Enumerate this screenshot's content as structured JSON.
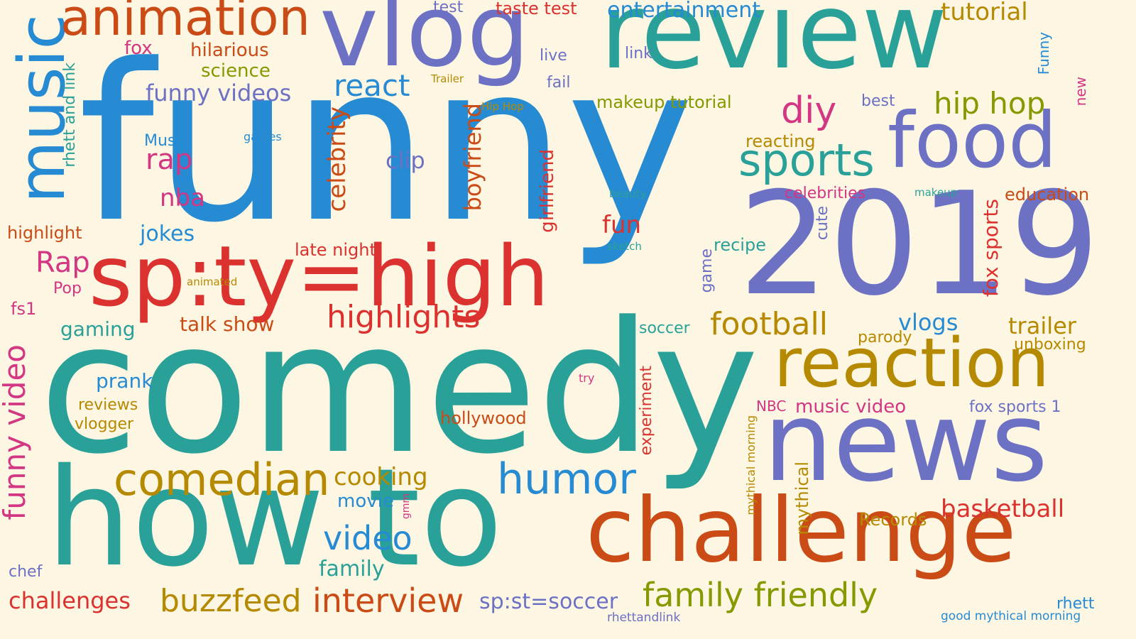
{
  "background": "#fdf6e3",
  "palette": {
    "blue": "#268bd2",
    "teal": "#2aa198",
    "violet": "#6c71c4",
    "red": "#dc322f",
    "orange": "#cb4b16",
    "gold": "#b58900",
    "olive": "#859900",
    "magenta": "#d33682"
  },
  "words": [
    {
      "text": "funny",
      "color": "#268bd2"
    },
    {
      "text": "comedy",
      "color": "#2aa198"
    },
    {
      "text": "review",
      "color": "#2aa198"
    },
    {
      "text": "vlog",
      "color": "#6c71c4"
    },
    {
      "text": "2019",
      "color": "#6c71c4"
    },
    {
      "text": "news",
      "color": "#6c71c4"
    },
    {
      "text": "how to",
      "color": "#2aa198"
    },
    {
      "text": "challenge",
      "color": "#cb4b16"
    },
    {
      "text": "reaction",
      "color": "#b58900"
    },
    {
      "text": "sp:ty=high",
      "color": "#dc322f"
    },
    {
      "text": "food",
      "color": "#6c71c4"
    },
    {
      "text": "music",
      "color": "#268bd2"
    },
    {
      "text": "animation",
      "color": "#cb4b16"
    },
    {
      "text": "comedian",
      "color": "#b58900"
    },
    {
      "text": "sports",
      "color": "#2aa198"
    },
    {
      "text": "humor",
      "color": "#268bd2"
    },
    {
      "text": "football",
      "color": "#b58900"
    },
    {
      "text": "family friendly",
      "color": "#859900"
    },
    {
      "text": "interview",
      "color": "#cb4b16"
    },
    {
      "text": "highlights",
      "color": "#dc322f"
    },
    {
      "text": "diy",
      "color": "#d33682"
    },
    {
      "text": "hip hop",
      "color": "#859900"
    },
    {
      "text": "buzzfeed",
      "color": "#b58900"
    },
    {
      "text": "funny video",
      "color": "#d33682"
    },
    {
      "text": "basketball",
      "color": "#dc322f"
    },
    {
      "text": "video",
      "color": "#268bd2"
    },
    {
      "text": "react",
      "color": "#268bd2"
    },
    {
      "text": "funny videos",
      "color": "#6c71c4"
    },
    {
      "text": "entertainment",
      "color": "#268bd2"
    },
    {
      "text": "tutorial",
      "color": "#b58900"
    },
    {
      "text": "challenges",
      "color": "#dc322f"
    },
    {
      "text": "sp:st=soccer",
      "color": "#6c71c4"
    },
    {
      "text": "cooking",
      "color": "#b58900"
    },
    {
      "text": "rap",
      "color": "#d33682"
    },
    {
      "text": "Rap",
      "color": "#d33682"
    },
    {
      "text": "trailer",
      "color": "#b58900"
    },
    {
      "text": "vlogs",
      "color": "#268bd2"
    },
    {
      "text": "nba",
      "color": "#d33682"
    },
    {
      "text": "jokes",
      "color": "#268bd2"
    },
    {
      "text": "clip",
      "color": "#6c71c4"
    },
    {
      "text": "fun",
      "color": "#dc322f"
    },
    {
      "text": "talk show",
      "color": "#cb4b16"
    },
    {
      "text": "gaming",
      "color": "#2aa198"
    },
    {
      "text": "prank",
      "color": "#268bd2"
    },
    {
      "text": "movie",
      "color": "#268bd2"
    },
    {
      "text": "family",
      "color": "#2aa198"
    },
    {
      "text": "music video",
      "color": "#d33682"
    },
    {
      "text": "celebrity",
      "color": "#cb4b16"
    },
    {
      "text": "boyfriend",
      "color": "#cb4b16"
    },
    {
      "text": "girlfriend",
      "color": "#dc322f"
    },
    {
      "text": "hilarious",
      "color": "#cb4b16"
    },
    {
      "text": "science",
      "color": "#859900"
    },
    {
      "text": "makeup tutorial",
      "color": "#859900"
    },
    {
      "text": "reacting",
      "color": "#b58900"
    },
    {
      "text": "celebrities",
      "color": "#d33682"
    },
    {
      "text": "education",
      "color": "#cb4b16"
    },
    {
      "text": "fox sports",
      "color": "#dc322f"
    },
    {
      "text": "recipe",
      "color": "#2aa198"
    },
    {
      "text": "highlight",
      "color": "#cb4b16"
    },
    {
      "text": "late night",
      "color": "#dc322f"
    },
    {
      "text": "soccer",
      "color": "#2aa198"
    },
    {
      "text": "parody",
      "color": "#b58900"
    },
    {
      "text": "unboxing",
      "color": "#b58900"
    },
    {
      "text": "fox sports 1",
      "color": "#6c71c4"
    },
    {
      "text": "reviews",
      "color": "#b58900"
    },
    {
      "text": "vlogger",
      "color": "#b58900"
    },
    {
      "text": "hollywood",
      "color": "#cb4b16"
    },
    {
      "text": "Records",
      "color": "#b58900"
    },
    {
      "text": "mythical",
      "color": "#b58900"
    },
    {
      "text": "experiment",
      "color": "#dc322f"
    },
    {
      "text": "rhett and link",
      "color": "#2aa198"
    },
    {
      "text": "fox",
      "color": "#d33682"
    },
    {
      "text": "test",
      "color": "#6c71c4"
    },
    {
      "text": "taste test",
      "color": "#dc322f"
    },
    {
      "text": "live",
      "color": "#6c71c4"
    },
    {
      "text": "fail",
      "color": "#6c71c4"
    },
    {
      "text": "link",
      "color": "#6c71c4"
    },
    {
      "text": "best",
      "color": "#6c71c4"
    },
    {
      "text": "Funny",
      "color": "#268bd2"
    },
    {
      "text": "new",
      "color": "#d33682"
    },
    {
      "text": "cute",
      "color": "#6c71c4"
    },
    {
      "text": "game",
      "color": "#6c71c4"
    },
    {
      "text": "fs1",
      "color": "#d33682"
    },
    {
      "text": "Pop",
      "color": "#d33682"
    },
    {
      "text": "chef",
      "color": "#6c71c4"
    },
    {
      "text": "NBC",
      "color": "#d33682"
    },
    {
      "text": "rhett",
      "color": "#268bd2"
    },
    {
      "text": "Music",
      "color": "#268bd2"
    },
    {
      "text": "games",
      "color": "#268bd2"
    },
    {
      "text": "Trailer",
      "color": "#b58900"
    },
    {
      "text": "Hip Hop",
      "color": "#b58900"
    },
    {
      "text": "beauty",
      "color": "#2aa198"
    },
    {
      "text": "makeup",
      "color": "#2aa198"
    },
    {
      "text": "sketch",
      "color": "#2aa198"
    },
    {
      "text": "animated",
      "color": "#b58900"
    },
    {
      "text": "try",
      "color": "#d33682"
    },
    {
      "text": "gmm",
      "color": "#d33682"
    },
    {
      "text": "mythical morning",
      "color": "#b58900"
    },
    {
      "text": "rhettandlink",
      "color": "#6c71c4"
    },
    {
      "text": "good mythical morning",
      "color": "#268bd2"
    }
  ]
}
